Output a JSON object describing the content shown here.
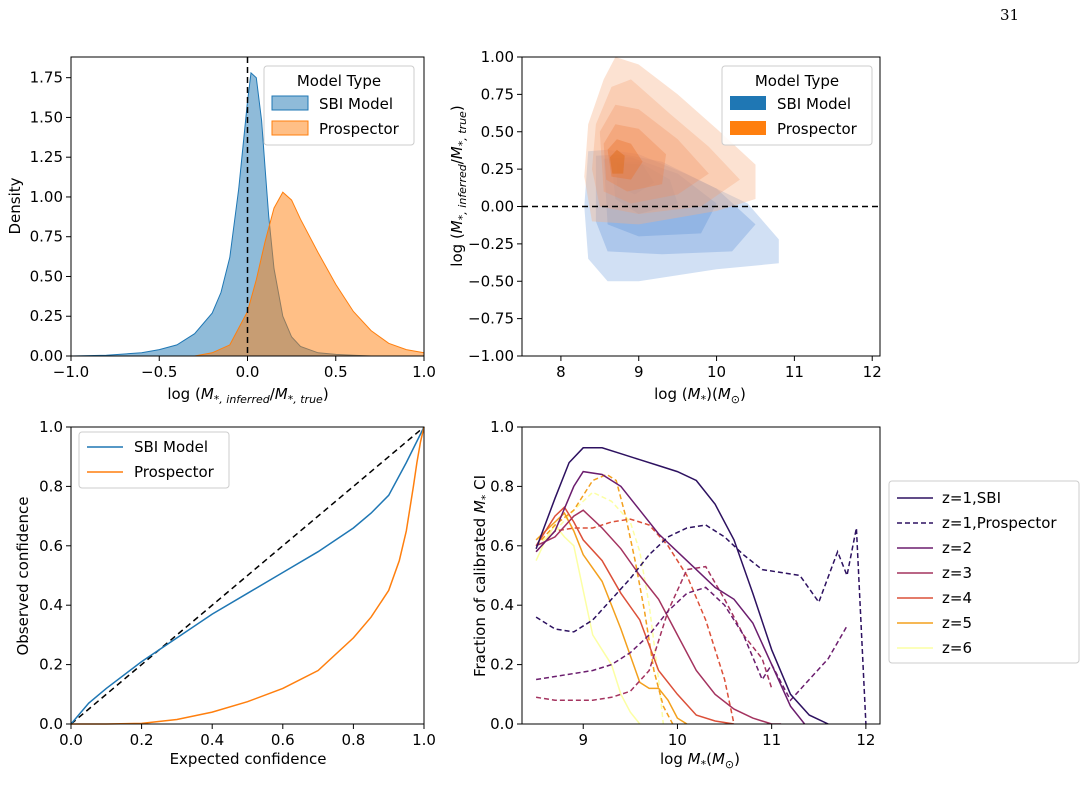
{
  "page_number": "31",
  "chart_data": [
    {
      "type": "area",
      "xlabel": "log (M*,inferred/M*,true)",
      "ylabel": "Density",
      "xlim": [
        -1.0,
        1.0
      ],
      "ylim": [
        0,
        1.88
      ],
      "xticks": [
        "−1.0",
        "−0.5",
        "0.0",
        "0.5",
        "1.0"
      ],
      "yticks": [
        "0.00",
        "0.25",
        "0.50",
        "0.75",
        "1.00",
        "1.25",
        "1.50",
        "1.75"
      ],
      "legend": {
        "title": "Model Type",
        "position": "upper right"
      },
      "reference_line": {
        "x": 0,
        "style": "dashed"
      },
      "series": [
        {
          "name": "SBI Model",
          "color": "#1f77b4",
          "x": [
            -1.0,
            -0.8,
            -0.6,
            -0.5,
            -0.4,
            -0.3,
            -0.2,
            -0.15,
            -0.1,
            -0.05,
            0.0,
            0.02,
            0.05,
            0.08,
            0.1,
            0.12,
            0.15,
            0.2,
            0.25,
            0.3,
            0.4,
            0.5,
            0.6,
            0.7
          ],
          "y": [
            0.0,
            0.005,
            0.02,
            0.04,
            0.07,
            0.14,
            0.27,
            0.4,
            0.62,
            1.05,
            1.6,
            1.78,
            1.75,
            1.48,
            1.18,
            0.88,
            0.55,
            0.25,
            0.12,
            0.06,
            0.02,
            0.01,
            0.005,
            0.0
          ]
        },
        {
          "name": "Prospector",
          "color": "#ff7f0e",
          "x": [
            -0.3,
            -0.2,
            -0.1,
            0.0,
            0.05,
            0.1,
            0.15,
            0.2,
            0.25,
            0.3,
            0.4,
            0.5,
            0.6,
            0.7,
            0.8,
            0.9,
            1.0
          ],
          "y": [
            0.0,
            0.02,
            0.07,
            0.28,
            0.48,
            0.72,
            0.93,
            1.03,
            0.98,
            0.86,
            0.65,
            0.45,
            0.28,
            0.16,
            0.08,
            0.04,
            0.02
          ]
        }
      ]
    },
    {
      "type": "heatmap",
      "xlabel": "log (M*)(M⊙)",
      "ylabel": "log (M*,inferred/M*,true)",
      "xlim": [
        7.5,
        12.1
      ],
      "ylim": [
        -1.0,
        1.0
      ],
      "xticks": [
        "8",
        "9",
        "10",
        "11",
        "12"
      ],
      "yticks": [
        "−1.00",
        "−0.75",
        "−0.50",
        "−0.25",
        "0.00",
        "0.25",
        "0.50",
        "0.75",
        "1.00"
      ],
      "legend": {
        "title": "Model Type",
        "position": "upper right"
      },
      "reference_line": {
        "y": 0,
        "style": "dashed"
      },
      "series": [
        {
          "name": "SBI Model",
          "color": "#1f77b4",
          "peak": [
            8.8,
            0.25
          ]
        },
        {
          "name": "Prospector",
          "color": "#ff7f0e",
          "peak": [
            8.7,
            0.27
          ]
        }
      ]
    },
    {
      "type": "line",
      "xlabel": "Expected confidence",
      "ylabel": "Observed confidence",
      "xlim": [
        0,
        1.0
      ],
      "ylim": [
        0,
        1.0
      ],
      "xticks": [
        "0.0",
        "0.2",
        "0.4",
        "0.6",
        "0.8",
        "1.0"
      ],
      "yticks": [
        "0.0",
        "0.2",
        "0.4",
        "0.6",
        "0.8",
        "1.0"
      ],
      "legend": {
        "position": "upper left"
      },
      "reference_line": {
        "from": [
          0,
          0
        ],
        "to": [
          1,
          1
        ],
        "style": "dashed"
      },
      "series": [
        {
          "name": "SBI Model",
          "color": "#1f77b4",
          "x": [
            0,
            0.05,
            0.1,
            0.2,
            0.3,
            0.4,
            0.5,
            0.6,
            0.7,
            0.8,
            0.85,
            0.9,
            0.95,
            1.0
          ],
          "y": [
            0,
            0.07,
            0.12,
            0.21,
            0.29,
            0.37,
            0.44,
            0.51,
            0.58,
            0.66,
            0.71,
            0.77,
            0.88,
            1.0
          ]
        },
        {
          "name": "Prospector",
          "color": "#ff7f0e",
          "x": [
            0,
            0.1,
            0.2,
            0.3,
            0.4,
            0.5,
            0.6,
            0.7,
            0.8,
            0.85,
            0.9,
            0.93,
            0.95,
            0.97,
            0.98,
            0.99,
            1.0
          ],
          "y": [
            0,
            0.0,
            0.002,
            0.015,
            0.04,
            0.075,
            0.12,
            0.18,
            0.29,
            0.36,
            0.45,
            0.55,
            0.65,
            0.8,
            0.88,
            0.95,
            1.0
          ]
        }
      ]
    },
    {
      "type": "line",
      "xlabel": "log M*(M⊙)",
      "ylabel": "Fraction of calibrated M* CI",
      "xlim": [
        8.35,
        12.15
      ],
      "ylim": [
        0,
        1.0
      ],
      "xticks": [
        "9",
        "10",
        "11",
        "12"
      ],
      "yticks": [
        "0.0",
        "0.2",
        "0.4",
        "0.6",
        "0.8",
        "1.0"
      ],
      "legend": {
        "position": "outside right"
      },
      "series": [
        {
          "name": "z=1,SBI",
          "color": "#2d1160",
          "dash": "solid",
          "x": [
            8.5,
            8.7,
            8.85,
            9.0,
            9.2,
            9.4,
            9.6,
            9.8,
            10.0,
            10.2,
            10.4,
            10.6,
            10.8,
            11.0,
            11.2,
            11.4,
            11.6
          ],
          "y": [
            0.59,
            0.76,
            0.88,
            0.93,
            0.93,
            0.91,
            0.89,
            0.87,
            0.85,
            0.82,
            0.74,
            0.62,
            0.44,
            0.25,
            0.1,
            0.03,
            0.0
          ]
        },
        {
          "name": "z=1,Prospector",
          "color": "#2d1160",
          "dash": "dashed",
          "x": [
            8.5,
            8.7,
            8.9,
            9.1,
            9.3,
            9.5,
            9.7,
            9.9,
            10.1,
            10.3,
            10.5,
            10.7,
            10.9,
            11.1,
            11.3,
            11.5,
            11.7,
            11.8,
            11.9,
            12.0
          ],
          "y": [
            0.36,
            0.32,
            0.31,
            0.35,
            0.42,
            0.49,
            0.57,
            0.63,
            0.66,
            0.67,
            0.63,
            0.57,
            0.52,
            0.51,
            0.5,
            0.41,
            0.58,
            0.5,
            0.66,
            0.0
          ]
        },
        {
          "name": "z=2",
          "color": "#6b1d6e",
          "dash": "solid",
          "x": [
            8.5,
            8.7,
            8.9,
            9.0,
            9.2,
            9.4,
            9.6,
            9.8,
            10.0,
            10.2,
            10.4,
            10.6,
            10.8,
            11.0,
            11.2,
            11.35
          ],
          "y": [
            0.58,
            0.65,
            0.8,
            0.85,
            0.84,
            0.8,
            0.72,
            0.64,
            0.58,
            0.52,
            0.46,
            0.42,
            0.34,
            0.2,
            0.06,
            0.0
          ]
        },
        {
          "name": "z=2, dashed",
          "color": "#6b1d6e",
          "dash": "dashed",
          "x": [
            8.5,
            8.7,
            8.9,
            9.1,
            9.3,
            9.5,
            9.7,
            9.9,
            10.1,
            10.3,
            10.5,
            10.7,
            10.9,
            11.0,
            11.2,
            11.4,
            11.6,
            11.8
          ],
          "y": [
            0.15,
            0.16,
            0.17,
            0.18,
            0.2,
            0.24,
            0.3,
            0.38,
            0.44,
            0.46,
            0.4,
            0.3,
            0.15,
            0.2,
            0.08,
            0.15,
            0.22,
            0.33
          ]
        },
        {
          "name": "z=3",
          "color": "#a4335f",
          "dash": "solid",
          "x": [
            8.5,
            8.7,
            8.9,
            9.0,
            9.2,
            9.4,
            9.6,
            9.8,
            10.0,
            10.2,
            10.4,
            10.6,
            10.8,
            11.0,
            11.1
          ],
          "y": [
            0.6,
            0.63,
            0.7,
            0.72,
            0.66,
            0.59,
            0.5,
            0.42,
            0.3,
            0.18,
            0.1,
            0.05,
            0.02,
            0.0,
            0.0
          ]
        },
        {
          "name": "z=3, dashed",
          "color": "#a4335f",
          "dash": "dashed",
          "x": [
            8.5,
            8.7,
            8.9,
            9.1,
            9.3,
            9.5,
            9.7,
            9.9,
            10.1,
            10.3,
            10.5,
            10.7,
            10.9,
            11.0
          ],
          "y": [
            0.09,
            0.08,
            0.08,
            0.08,
            0.09,
            0.11,
            0.18,
            0.38,
            0.52,
            0.53,
            0.42,
            0.3,
            0.22,
            0.12
          ]
        },
        {
          "name": "z=4",
          "color": "#dc5039",
          "dash": "solid",
          "x": [
            8.5,
            8.7,
            8.8,
            8.9,
            9.0,
            9.2,
            9.4,
            9.6,
            9.8,
            10.0,
            10.2,
            10.4,
            10.6
          ],
          "y": [
            0.6,
            0.7,
            0.73,
            0.68,
            0.62,
            0.55,
            0.44,
            0.35,
            0.18,
            0.1,
            0.03,
            0.01,
            0.0
          ]
        },
        {
          "name": "z=4, dashed",
          "color": "#dc5039",
          "dash": "dashed",
          "x": [
            8.5,
            8.7,
            8.9,
            9.1,
            9.3,
            9.5,
            9.7,
            9.9,
            10.1,
            10.3,
            10.5,
            10.6
          ],
          "y": [
            0.58,
            0.65,
            0.66,
            0.66,
            0.68,
            0.69,
            0.67,
            0.6,
            0.5,
            0.35,
            0.15,
            0.0
          ]
        },
        {
          "name": "z=5",
          "color": "#f3a01d",
          "dash": "solid",
          "x": [
            8.5,
            8.7,
            8.8,
            8.9,
            9.0,
            9.2,
            9.4,
            9.6,
            9.7,
            9.8,
            9.9,
            10.0,
            10.1
          ],
          "y": [
            0.62,
            0.68,
            0.71,
            0.65,
            0.57,
            0.48,
            0.32,
            0.14,
            0.12,
            0.12,
            0.08,
            0.02,
            0.0
          ]
        },
        {
          "name": "z=5, dashed",
          "color": "#f3a01d",
          "dash": "dashed",
          "x": [
            8.5,
            8.7,
            8.9,
            9.1,
            9.25,
            9.35,
            9.45,
            9.55,
            9.65,
            9.75,
            9.85,
            9.95
          ],
          "y": [
            0.6,
            0.67,
            0.72,
            0.82,
            0.84,
            0.82,
            0.7,
            0.55,
            0.38,
            0.18,
            0.06,
            0.0
          ]
        },
        {
          "name": "z=6",
          "color": "#fcffa4",
          "dash": "solid",
          "x": [
            8.5,
            8.6,
            8.7,
            8.8,
            8.9,
            9.0,
            9.1,
            9.2,
            9.3,
            9.4,
            9.5,
            9.6
          ],
          "y": [
            0.55,
            0.62,
            0.67,
            0.63,
            0.6,
            0.45,
            0.3,
            0.25,
            0.2,
            0.1,
            0.04,
            0.0
          ]
        },
        {
          "name": "z=6, dashed",
          "color": "#fcffa4",
          "dash": "dashed",
          "x": [
            8.5,
            8.7,
            8.9,
            9.1,
            9.3,
            9.5,
            9.6,
            9.7,
            9.8,
            9.85
          ],
          "y": [
            0.6,
            0.65,
            0.72,
            0.78,
            0.75,
            0.68,
            0.58,
            0.4,
            0.15,
            0.0
          ]
        }
      ],
      "legend_entries": [
        {
          "label": "z=1,SBI",
          "color": "#2d1160",
          "dash": "solid"
        },
        {
          "label": "z=1,Prospector",
          "color": "#2d1160",
          "dash": "dashed"
        },
        {
          "label": "z=2",
          "color": "#6b1d6e",
          "dash": "solid"
        },
        {
          "label": "z=3",
          "color": "#a4335f",
          "dash": "solid"
        },
        {
          "label": "z=4",
          "color": "#dc5039",
          "dash": "solid"
        },
        {
          "label": "z=5",
          "color": "#f3a01d",
          "dash": "solid"
        },
        {
          "label": "z=6",
          "color": "#fcffa4",
          "dash": "solid"
        }
      ]
    }
  ]
}
